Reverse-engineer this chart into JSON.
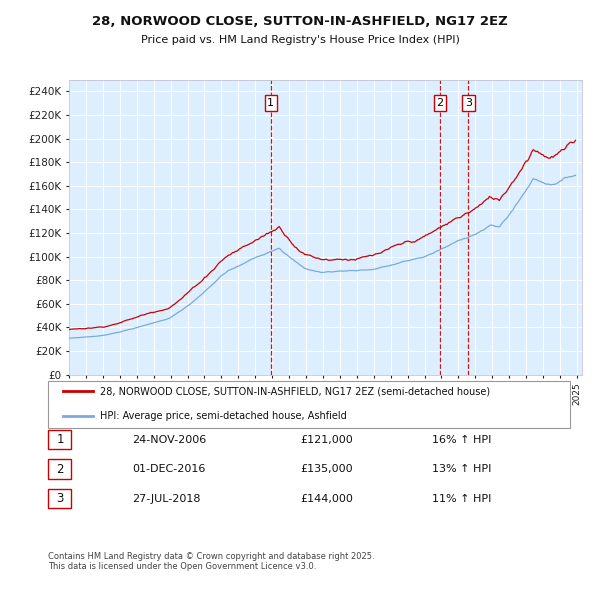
{
  "title": "28, NORWOOD CLOSE, SUTTON-IN-ASHFIELD, NG17 2EZ",
  "subtitle": "Price paid vs. HM Land Registry's House Price Index (HPI)",
  "legend_line1": "28, NORWOOD CLOSE, SUTTON-IN-ASHFIELD, NG17 2EZ (semi-detached house)",
  "legend_line2": "HPI: Average price, semi-detached house, Ashfield",
  "footer": "Contains HM Land Registry data © Crown copyright and database right 2025.\nThis data is licensed under the Open Government Licence v3.0.",
  "table": [
    [
      "1",
      "24-NOV-2006",
      "£121,000",
      "16% ↑ HPI"
    ],
    [
      "2",
      "01-DEC-2016",
      "£135,000",
      "13% ↑ HPI"
    ],
    [
      "3",
      "27-JUL-2018",
      "£144,000",
      "11% ↑ HPI"
    ]
  ],
  "sale_color": "#cc0000",
  "hpi_color": "#7aaadd",
  "vline_color": "#cc0000",
  "plot_bg": "#ddeeff",
  "ylim": [
    0,
    250000
  ],
  "ytick_step": 20000,
  "sale_dates": [
    2006.92,
    2016.92,
    2018.58
  ],
  "sale_prices": [
    121000,
    135000,
    144000
  ],
  "marker_labels": [
    "1",
    "2",
    "3"
  ],
  "xstart": 1995,
  "xend": 2025
}
